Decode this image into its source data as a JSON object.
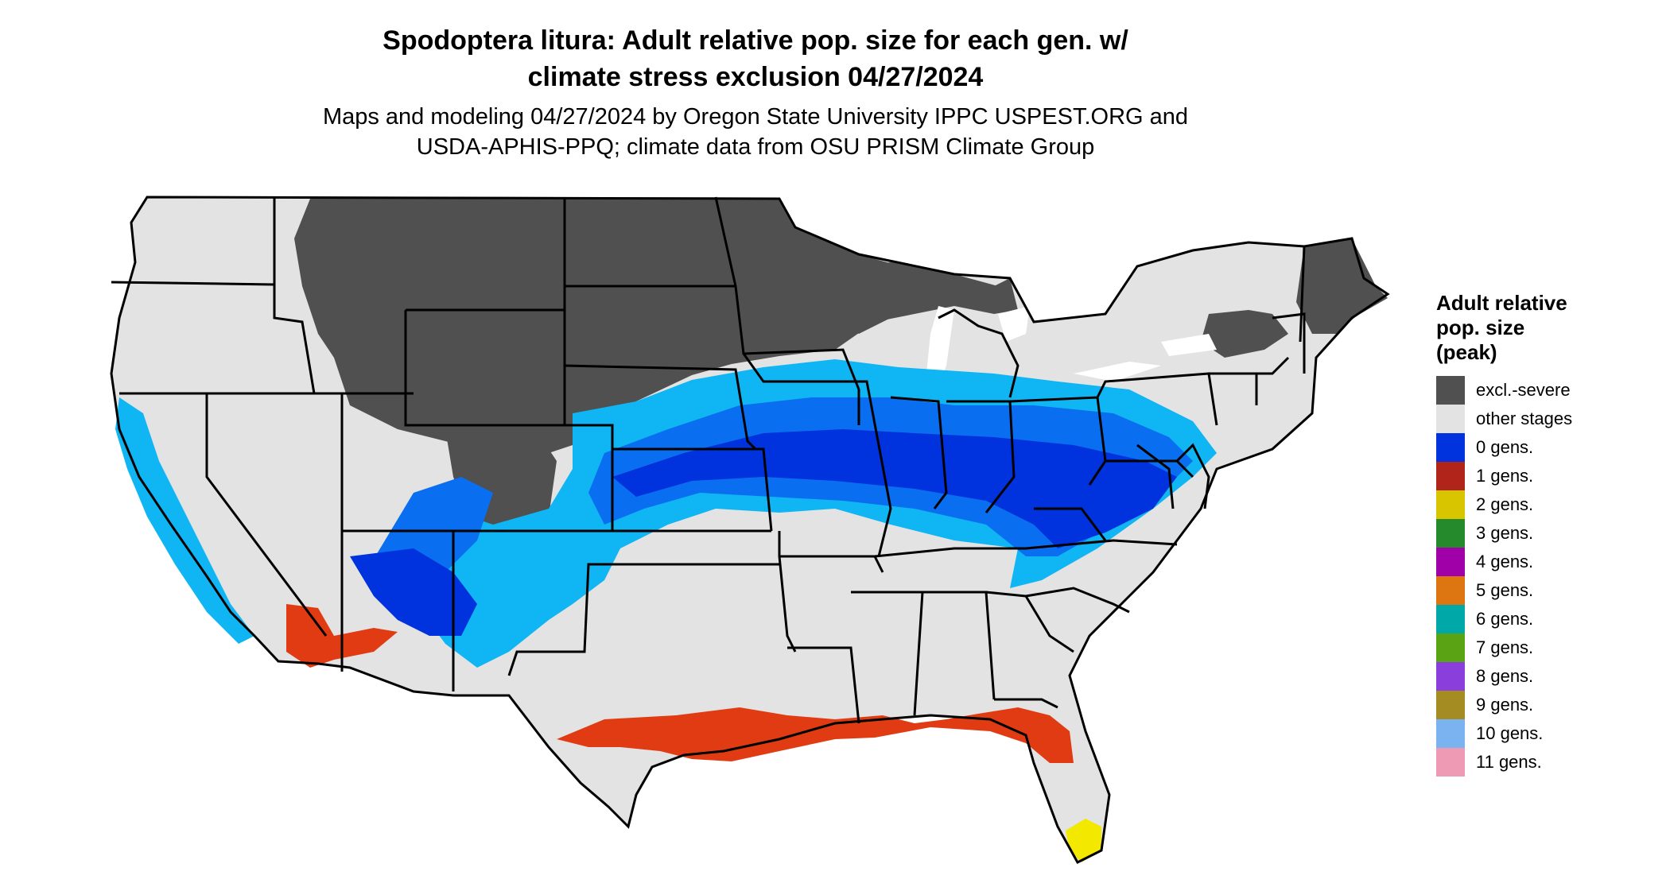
{
  "title": {
    "line1": "Spodoptera litura: Adult relative pop. size for each gen. w/",
    "line2": "climate stress exclusion 04/27/2024"
  },
  "subtitle": {
    "line1": "Maps and modeling 04/27/2024 by Oregon State University IPPC USPEST.ORG and",
    "line2": "USDA-APHIS-PPQ; climate data from OSU PRISM Climate Group"
  },
  "legend": {
    "title_lines": [
      "Adult relative",
      "pop. size",
      "(peak)"
    ],
    "items": [
      {
        "label": "excl.-severe",
        "color": "#505050"
      },
      {
        "label": "other stages",
        "color": "#e3e3e3"
      },
      {
        "label": "0 gens.",
        "color": "#0033dd"
      },
      {
        "label": "1 gens.",
        "color": "#b0241a"
      },
      {
        "label": "2 gens.",
        "color": "#d9c400"
      },
      {
        "label": "3 gens.",
        "color": "#258a2c"
      },
      {
        "label": "4 gens.",
        "color": "#a000a8"
      },
      {
        "label": "5 gens.",
        "color": "#dd7510"
      },
      {
        "label": "6 gens.",
        "color": "#00a8a8"
      },
      {
        "label": "7 gens.",
        "color": "#5aa314"
      },
      {
        "label": "8 gens.",
        "color": "#8a3fdd"
      },
      {
        "label": "9 gens.",
        "color": "#a48c22"
      },
      {
        "label": "10 gens.",
        "color": "#7ab3f0"
      },
      {
        "label": "11 gens.",
        "color": "#ee9ab4"
      }
    ]
  },
  "map_colors": {
    "excluded": "#505050",
    "other_stages": "#e3e3e3",
    "light_blue": "#10b6f3",
    "mid_blue": "#0a6ef0",
    "dark_blue": "#0033dd",
    "one_gen": "#e03b12",
    "two_gen": "#f2e800",
    "state_border": "#000000"
  }
}
